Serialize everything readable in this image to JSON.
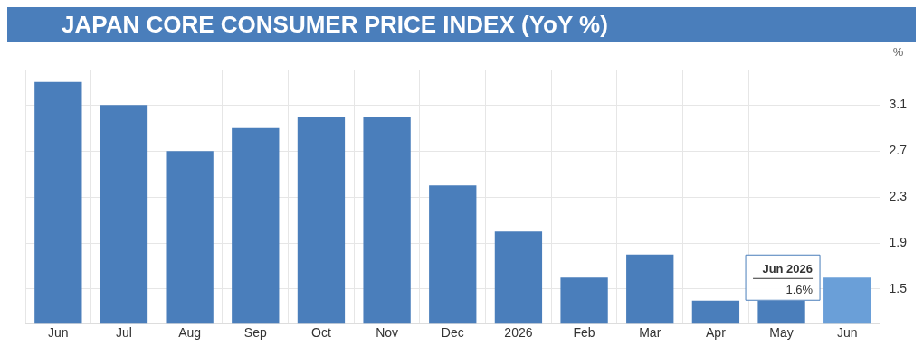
{
  "chart_data": {
    "type": "bar",
    "title": "JAPAN CORE CONSUMER PRICE INDEX  (YoY %)",
    "ylabel": "%",
    "categories": [
      "Jun",
      "Jul",
      "Aug",
      "Sep",
      "Oct",
      "Nov",
      "Dec",
      "2026",
      "Feb",
      "Mar",
      "Apr",
      "May",
      "Jun"
    ],
    "values": [
      3.3,
      3.1,
      2.7,
      2.9,
      3.0,
      3.0,
      2.4,
      2.0,
      1.6,
      1.8,
      1.4,
      1.4,
      1.6
    ],
    "colors": [
      "#4a7ebb",
      "#4a7ebb",
      "#4a7ebb",
      "#4a7ebb",
      "#4a7ebb",
      "#4a7ebb",
      "#4a7ebb",
      "#4a7ebb",
      "#4a7ebb",
      "#4a7ebb",
      "#4a7ebb",
      "#4a7ebb",
      "#6a9fd8"
    ],
    "ylim": [
      1.2,
      3.4
    ],
    "yticks": [
      1.5,
      1.9,
      2.3,
      2.7,
      3.1
    ],
    "grid": true,
    "annotations": [
      "Jun 2026",
      "1.6%"
    ]
  }
}
